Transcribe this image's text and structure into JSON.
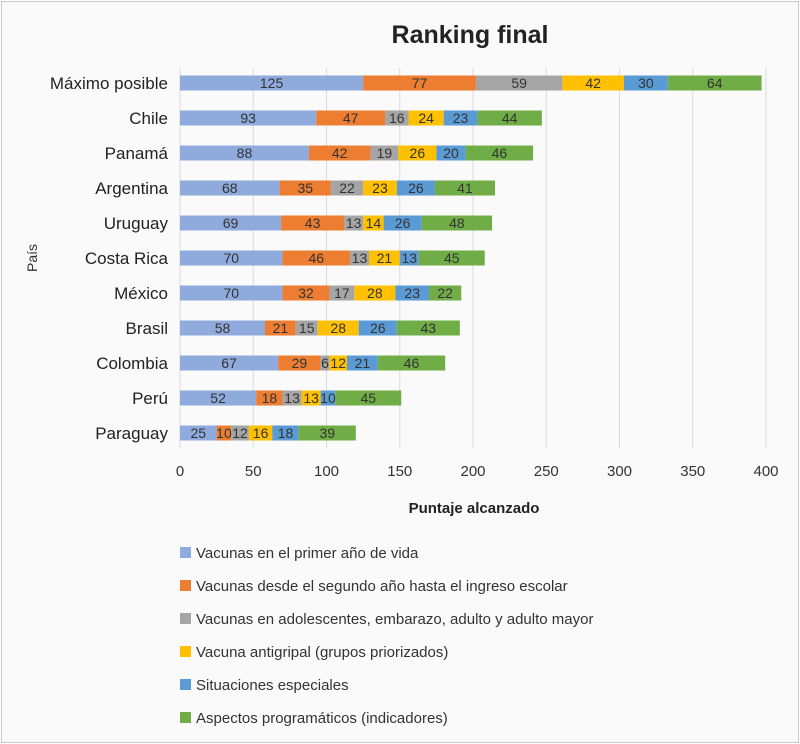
{
  "chart_data": {
    "type": "bar",
    "orientation": "horizontal",
    "stacked": true,
    "title": "Ranking final",
    "xlabel": "Puntaje alcanzado",
    "ylabel": "País",
    "xlim": [
      0,
      400
    ],
    "xticks": [
      0,
      50,
      100,
      150,
      200,
      250,
      300,
      350,
      400
    ],
    "grid": true,
    "legend_position": "bottom",
    "categories": [
      "Máximo posible",
      "Chile",
      "Panamá",
      "Argentina",
      "Uruguay",
      "Costa Rica",
      "México",
      "Brasil",
      "Colombia",
      "Perú",
      "Paraguay"
    ],
    "series": [
      {
        "name": "Vacunas en el primer año de vida",
        "color": "#8faadc",
        "values": [
          125,
          93,
          88,
          68,
          69,
          70,
          70,
          58,
          67,
          52,
          25
        ]
      },
      {
        "name": "Vacunas desde el segundo año hasta el ingreso escolar",
        "color": "#ed7d31",
        "values": [
          77,
          47,
          42,
          35,
          43,
          46,
          32,
          21,
          29,
          18,
          10
        ]
      },
      {
        "name": "Vacunas en adolescentes, embarazo, adulto y adulto mayor",
        "color": "#a5a5a5",
        "values": [
          59,
          16,
          19,
          22,
          13,
          13,
          17,
          15,
          6,
          13,
          12
        ]
      },
      {
        "name": "Vacuna antigripal (grupos priorizados)",
        "color": "#ffc000",
        "values": [
          42,
          24,
          26,
          23,
          14,
          21,
          28,
          28,
          12,
          13,
          16
        ]
      },
      {
        "name": "Situaciones especiales",
        "color": "#5b9bd5",
        "values": [
          30,
          23,
          20,
          26,
          26,
          13,
          23,
          26,
          21,
          10,
          18
        ]
      },
      {
        "name": "Aspectos programáticos (indicadores)",
        "color": "#70ad47",
        "values": [
          64,
          44,
          46,
          41,
          48,
          45,
          22,
          43,
          46,
          45,
          39
        ]
      }
    ]
  }
}
